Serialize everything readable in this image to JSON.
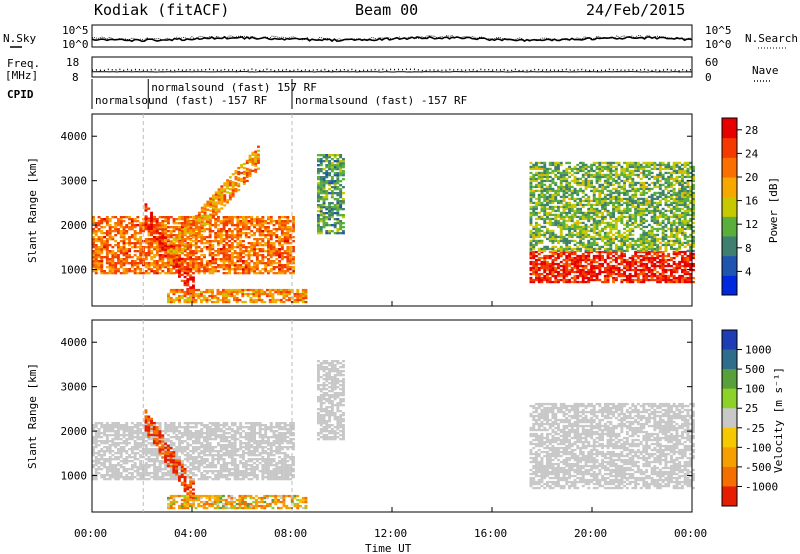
{
  "header": {
    "station": "Kodiak (fitACF)",
    "beam": "Beam 00",
    "date": "24/Feb/2015"
  },
  "noise_panel": {
    "left_label": "N.Sky",
    "right_label": "N.Search",
    "left_ticks": [
      "10^5",
      "10^0"
    ],
    "right_ticks": [
      "10^5",
      "10^0"
    ]
  },
  "freq_panel": {
    "left_label_1": "Freq.",
    "left_label_2": "[MHz]",
    "right_label": "Nave",
    "left_ticks": [
      "18",
      "8"
    ],
    "right_ticks": [
      "60",
      "0"
    ]
  },
  "cpid": {
    "label": "CPID",
    "entries": [
      {
        "time": "00:00",
        "text": "normalsound (fast) -157 RF",
        "row": 2
      },
      {
        "time": "02:15",
        "text": "normalsound (fast) 157 RF",
        "row": 1
      },
      {
        "time": "08:00",
        "text": "normalsound (fast) -157 RF",
        "row": 2
      }
    ]
  },
  "x_axis": {
    "label": "Time UT",
    "ticks": [
      "00:00",
      "04:00",
      "08:00",
      "12:00",
      "16:00",
      "20:00",
      "00:00"
    ]
  },
  "colors": {
    "power": [
      "#0028dc",
      "#1f55b0",
      "#3f7f70",
      "#5aae3c",
      "#c8c800",
      "#f7a800",
      "#fa7000",
      "#f53a00",
      "#e60000"
    ],
    "velocity": [
      "#1e3cb4",
      "#2e6e8c",
      "#58a03c",
      "#8cd228",
      "#c8c8c8",
      "#f5c800",
      "#f5a000",
      "#f56e00",
      "#e61e00"
    ]
  },
  "chart_data": [
    {
      "type": "heatmap",
      "title": "Power",
      "xlabel": "Time UT",
      "ylabel": "Slant Range [km]",
      "xlim": [
        0,
        24
      ],
      "ylim": [
        180,
        4500
      ],
      "yticks": [
        "1000",
        "2000",
        "3000",
        "4000"
      ],
      "colorbar_label": "Power [dB]",
      "colorbar_ticks": [
        "4",
        "8",
        "12",
        "16",
        "20",
        "24",
        "28"
      ],
      "colorbar_range": [
        0,
        30
      ],
      "features": [
        {
          "name": "dayside band",
          "t_start": 0.0,
          "t_end": 8.0,
          "range_start_km": 900,
          "range_end_km": 2200,
          "power_db": 22
        },
        {
          "name": "stripe",
          "t_start": 2.1,
          "t_end": 4.0,
          "range_start_km": 2200,
          "range_end_km": 600,
          "power_db": 27
        },
        {
          "name": "rising streak",
          "t_start": 3.0,
          "t_end": 6.6,
          "range_start_km": 1300,
          "range_end_km": 3500,
          "power_db": 20
        },
        {
          "name": "near-range echoes",
          "t_start": 3.0,
          "t_end": 8.5,
          "range_start_km": 250,
          "range_end_km": 550,
          "power_db": 20
        },
        {
          "name": "patch",
          "t_start": 9.0,
          "t_end": 10.0,
          "range_start_km": 1800,
          "range_end_km": 3600,
          "power_db": 10
        },
        {
          "name": "night band",
          "t_start": 17.5,
          "t_end": 24.0,
          "range_start_km": 700,
          "range_end_km": 1400,
          "power_db": 27
        },
        {
          "name": "night streaks",
          "t_start": 17.5,
          "t_end": 24.0,
          "range_start_km": 1400,
          "range_end_km": 3400,
          "power_db": 12
        }
      ]
    },
    {
      "type": "heatmap",
      "title": "Velocity",
      "xlabel": "Time UT",
      "ylabel": "Slant Range [km]",
      "xlim": [
        0,
        24
      ],
      "ylim": [
        180,
        4500
      ],
      "yticks": [
        "1000",
        "2000",
        "3000",
        "4000"
      ],
      "colorbar_label": "Velocity [m s⁻¹]",
      "colorbar_ticks": [
        "1000",
        "500",
        "100",
        "25",
        "-25",
        "-100",
        "-500",
        "-1000"
      ],
      "features": [
        {
          "name": "dayside band",
          "t_start": 0.0,
          "t_end": 8.0,
          "range_start_km": 900,
          "range_end_km": 2200,
          "velocity": 0
        },
        {
          "name": "stripe",
          "t_start": 2.1,
          "t_end": 4.0,
          "range_start_km": 2200,
          "range_end_km": 600,
          "velocity": -800
        },
        {
          "name": "near-range echoes",
          "t_start": 3.0,
          "t_end": 8.5,
          "range_start_km": 250,
          "range_end_km": 550,
          "velocity": -150
        },
        {
          "name": "patch",
          "t_start": 9.0,
          "t_end": 10.0,
          "range_start_km": 1800,
          "range_end_km": 3600,
          "velocity": 0
        },
        {
          "name": "night band",
          "t_start": 17.5,
          "t_end": 24.0,
          "range_start_km": 700,
          "range_end_km": 2600,
          "velocity": 0
        }
      ]
    }
  ]
}
